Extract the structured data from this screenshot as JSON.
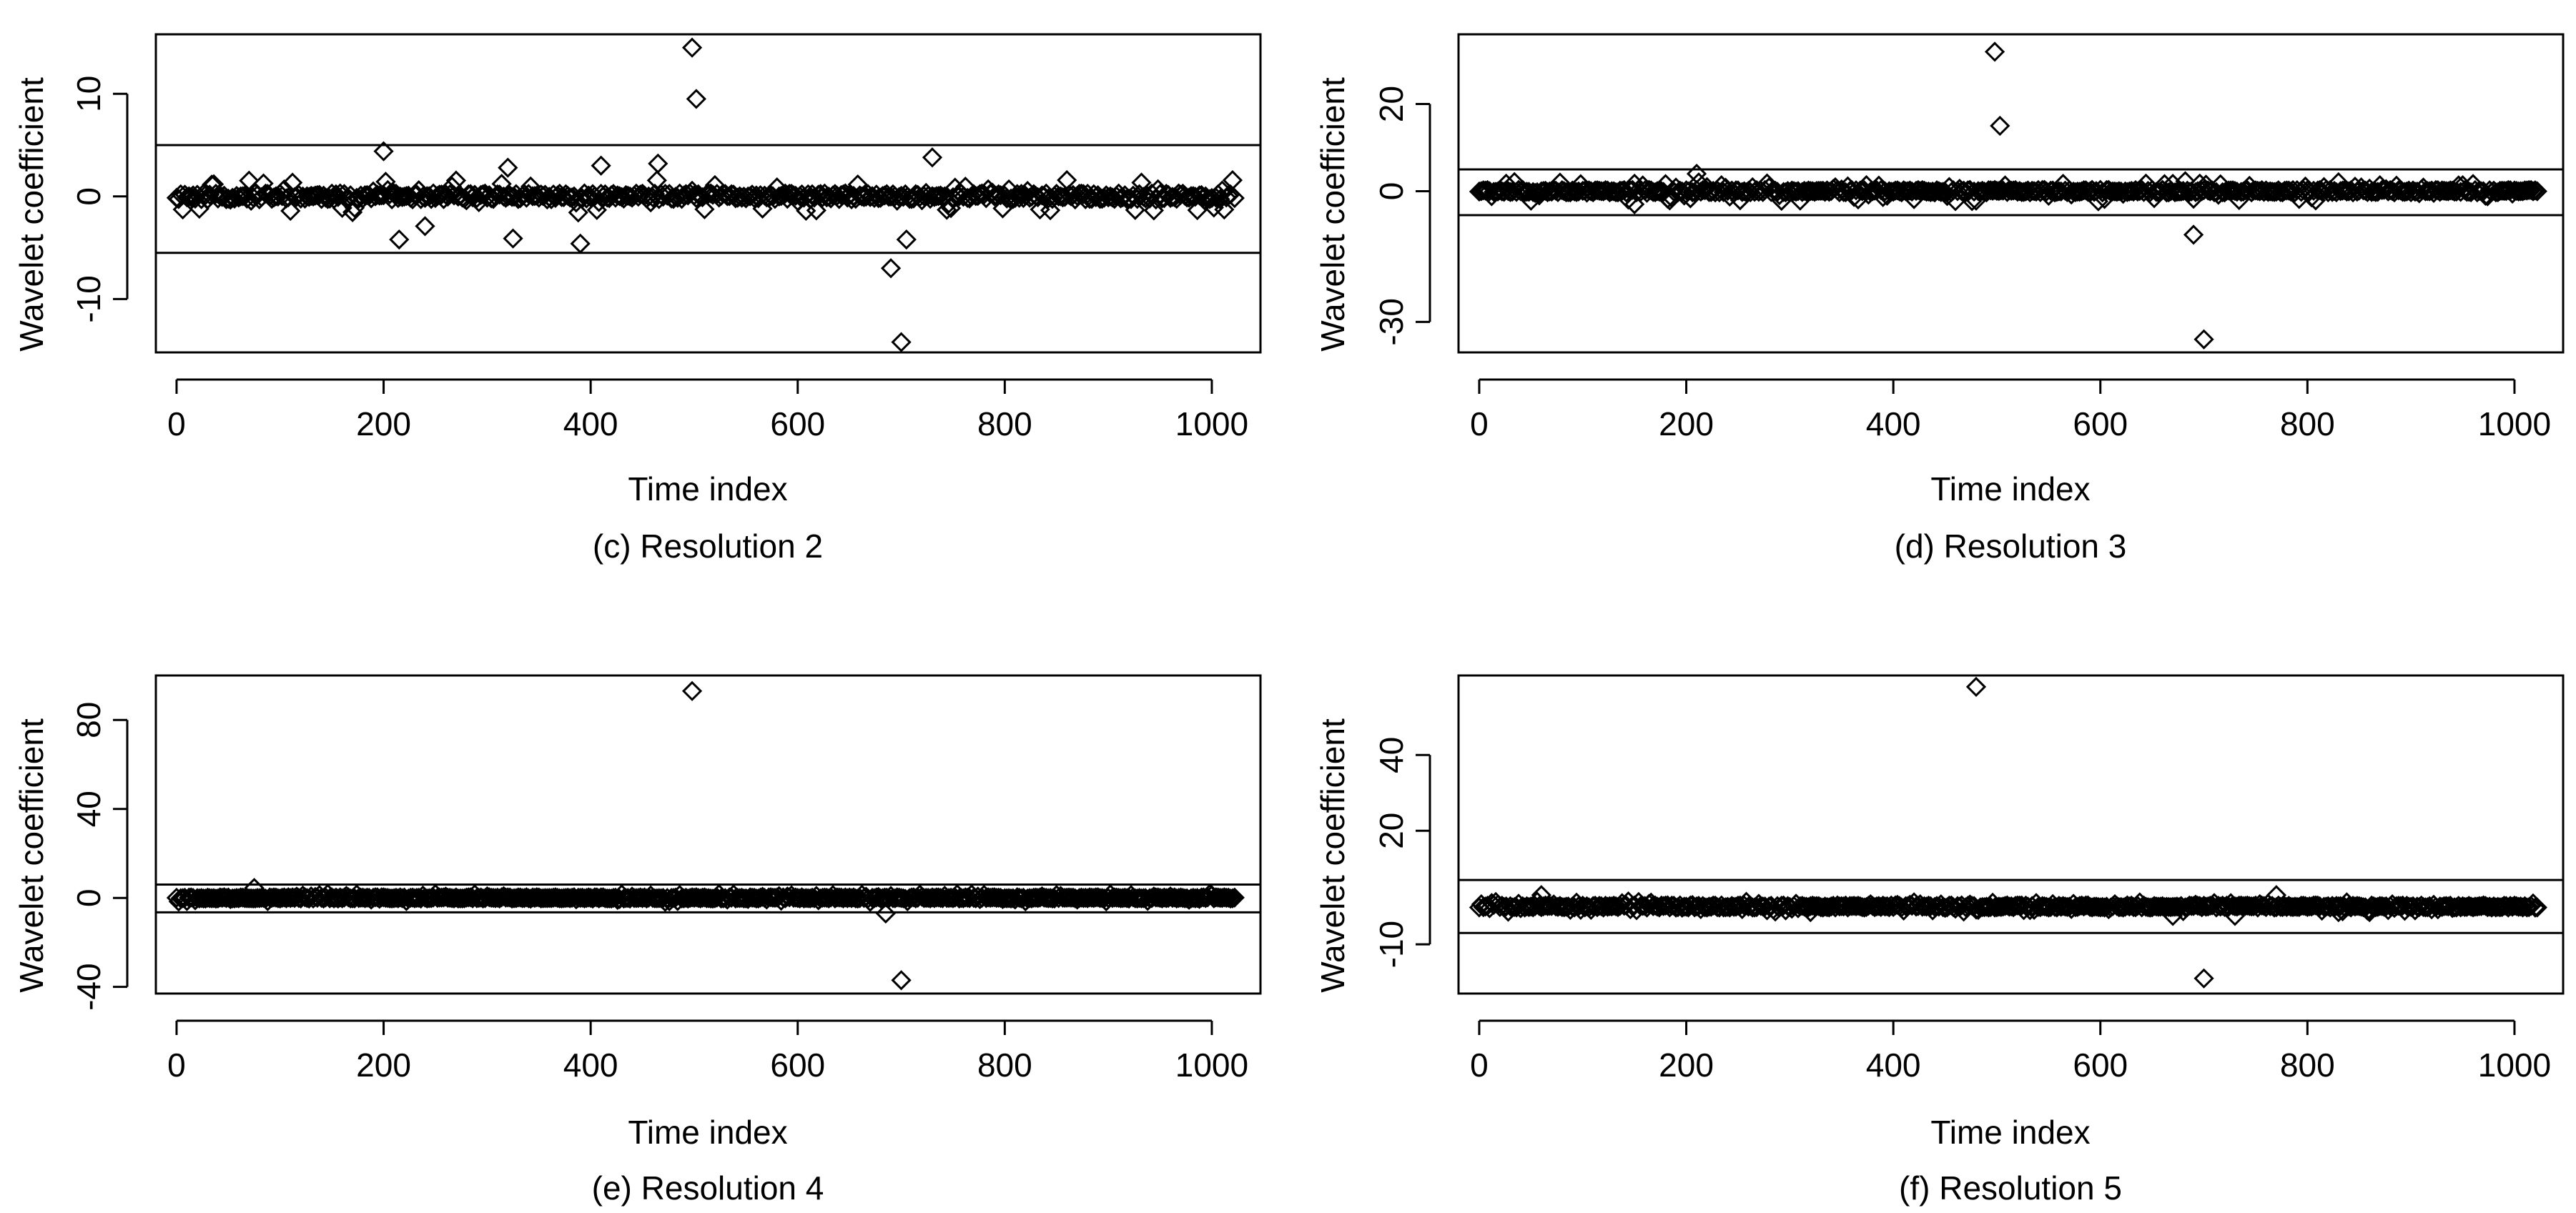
{
  "colors": {
    "ink": "#000000",
    "background": "#ffffff"
  },
  "chart_data": [
    {
      "type": "scatter",
      "caption": "(c) Resolution 2",
      "xlabel": "Time index",
      "ylabel": "Wavelet coefficient",
      "xlim": [
        -20,
        1047
      ],
      "ylim": [
        -15.2,
        15.8
      ],
      "xticks": [
        0,
        200,
        400,
        600,
        800,
        1000
      ],
      "yticks": [
        -10,
        0,
        10
      ],
      "threshold_lines": [
        5.0,
        -5.5
      ],
      "noise_band": 1.6,
      "seed": 11,
      "n_points": 1024,
      "outliers": [
        {
          "x": 498,
          "y": 14.5
        },
        {
          "x": 502,
          "y": 9.5
        },
        {
          "x": 200,
          "y": 4.4
        },
        {
          "x": 730,
          "y": 3.8
        },
        {
          "x": 690,
          "y": -7.0
        },
        {
          "x": 700,
          "y": -14.2
        },
        {
          "x": 705,
          "y": -4.2
        },
        {
          "x": 390,
          "y": -4.6
        },
        {
          "x": 325,
          "y": -4.1
        },
        {
          "x": 215,
          "y": -4.2
        },
        {
          "x": 240,
          "y": -2.9
        },
        {
          "x": 465,
          "y": 3.2
        },
        {
          "x": 410,
          "y": 3.0
        },
        {
          "x": 320,
          "y": 2.8
        }
      ]
    },
    {
      "type": "scatter",
      "caption": "(d) Resolution 3",
      "xlabel": "Time index",
      "ylabel": "Wavelet coefficient",
      "xlim": [
        -20,
        1047
      ],
      "ylim": [
        -37,
        36
      ],
      "xticks": [
        0,
        200,
        400,
        600,
        800,
        1000
      ],
      "yticks": [
        -30,
        0,
        20
      ],
      "threshold_lines": [
        5.0,
        -5.5
      ],
      "noise_band": 2.4,
      "seed": 23,
      "n_points": 1024,
      "outliers": [
        {
          "x": 498,
          "y": 32.0
        },
        {
          "x": 503,
          "y": 15.0
        },
        {
          "x": 690,
          "y": -10.0
        },
        {
          "x": 700,
          "y": -34.0
        },
        {
          "x": 210,
          "y": 4.0
        },
        {
          "x": 150,
          "y": -3.0
        }
      ]
    },
    {
      "type": "scatter",
      "caption": "(e) Resolution 4",
      "xlabel": "Time index",
      "ylabel": "Wavelet coefficient",
      "xlim": [
        -20,
        1047
      ],
      "ylim": [
        -43,
        100
      ],
      "xticks": [
        0,
        200,
        400,
        600,
        800,
        1000
      ],
      "yticks": [
        -40,
        0,
        40,
        80
      ],
      "threshold_lines": [
        6.0,
        -6.5
      ],
      "noise_band": 1.8,
      "seed": 37,
      "n_points": 1024,
      "outliers": [
        {
          "x": 498,
          "y": 93.0
        },
        {
          "x": 685,
          "y": -7.0
        },
        {
          "x": 700,
          "y": -37.0
        },
        {
          "x": 75,
          "y": 4.5
        }
      ]
    },
    {
      "type": "scatter",
      "caption": "(f) Resolution 5",
      "xlabel": "Time index",
      "ylabel": "Wavelet coefficient",
      "xlim": [
        -20,
        1047
      ],
      "ylim": [
        -23,
        61
      ],
      "xticks": [
        0,
        200,
        400,
        600,
        800,
        1000
      ],
      "yticks": [
        -10,
        20,
        40
      ],
      "threshold_lines": [
        7.0,
        -7.0
      ],
      "noise_band": 1.4,
      "seed": 53,
      "n_points": 1024,
      "outliers": [
        {
          "x": 480,
          "y": 58.0
        },
        {
          "x": 700,
          "y": -19.0
        },
        {
          "x": 670,
          "y": -2.5
        },
        {
          "x": 730,
          "y": -2.5
        },
        {
          "x": 320,
          "y": -1.5
        },
        {
          "x": 830,
          "y": -1.5
        },
        {
          "x": 860,
          "y": -1.5
        },
        {
          "x": 60,
          "y": 3.0
        },
        {
          "x": 770,
          "y": 3.0
        }
      ]
    }
  ]
}
